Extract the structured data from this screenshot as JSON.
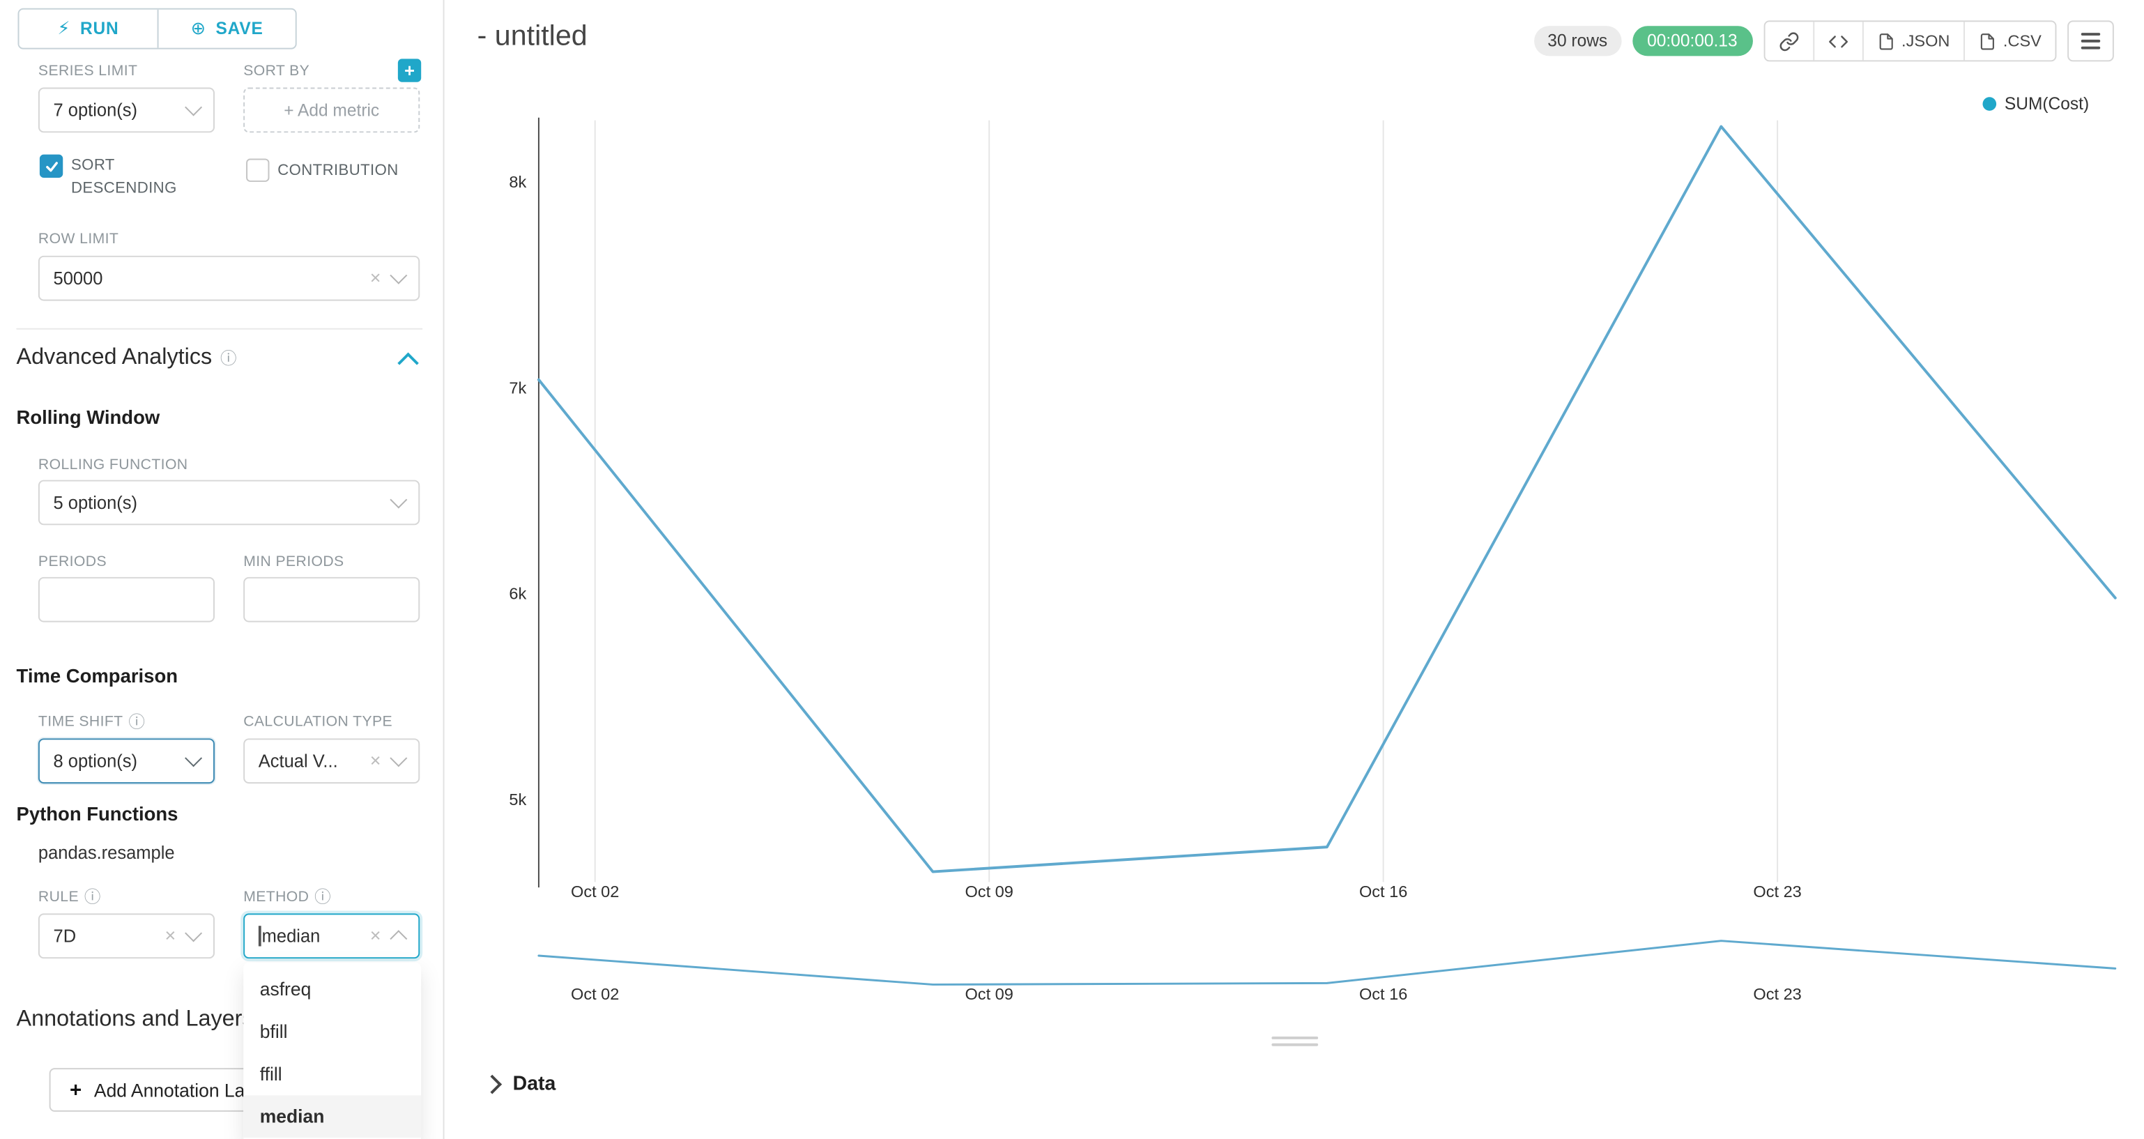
{
  "sidebar": {
    "run_label": "RUN",
    "save_label": "SAVE",
    "series_limit": {
      "label": "SERIES LIMIT",
      "value": "7 option(s)"
    },
    "sort_by": {
      "label": "SORT BY",
      "placeholder": "+ Add metric"
    },
    "sort_descending": {
      "label": "SORT DESCENDING",
      "checked": true
    },
    "contribution": {
      "label": "CONTRIBUTION",
      "checked": false
    },
    "row_limit": {
      "label": "ROW LIMIT",
      "value": "50000"
    },
    "advanced_analytics": {
      "title": "Advanced Analytics"
    },
    "rolling_window": {
      "title": "Rolling Window",
      "rolling_function": {
        "label": "ROLLING FUNCTION",
        "value": "5 option(s)"
      },
      "periods": {
        "label": "PERIODS",
        "value": ""
      },
      "min_periods": {
        "label": "MIN PERIODS",
        "value": ""
      }
    },
    "time_comparison": {
      "title": "Time Comparison",
      "time_shift": {
        "label": "TIME SHIFT",
        "value": "8 option(s)"
      },
      "calculation_type": {
        "label": "CALCULATION TYPE",
        "value": "Actual V..."
      }
    },
    "python_functions": {
      "title": "Python Functions",
      "subtitle": "pandas.resample",
      "rule": {
        "label": "RULE",
        "value": "7D"
      },
      "method": {
        "label": "METHOD",
        "value": "median"
      },
      "method_options": [
        "asfreq",
        "bfill",
        "ffill",
        "median"
      ],
      "method_selected": "median"
    },
    "annotations": {
      "title": "Annotations and Layers",
      "add_button": "Add Annotation Layer"
    }
  },
  "header": {
    "title": "- untitled",
    "rows_badge": "30 rows",
    "timer": "00:00:00.13",
    "json_label": ".JSON",
    "csv_label": ".CSV"
  },
  "data_panel": {
    "title": "Data"
  },
  "colors": {
    "accent": "#20A7C9",
    "success": "#5AC189"
  },
  "chart_data": {
    "type": "line",
    "title": "",
    "xlabel": "",
    "ylabel": "",
    "series": [
      {
        "name": "SUM(Cost)",
        "points": [
          {
            "x_day": 0,
            "label": "Oct 01",
            "value": 7040
          },
          {
            "x_day": 7,
            "label": "Oct 08",
            "value": 4650
          },
          {
            "x_day": 14,
            "label": "Oct 15",
            "value": 4770
          },
          {
            "x_day": 21,
            "label": "Oct 22",
            "value": 8270
          },
          {
            "x_day": 28,
            "label": "Oct 29",
            "value": 5980
          }
        ]
      }
    ],
    "x_ticks": [
      {
        "label": "Oct 02",
        "x_day": 1
      },
      {
        "label": "Oct 09",
        "x_day": 8
      },
      {
        "label": "Oct 16",
        "x_day": 15
      },
      {
        "label": "Oct 23",
        "x_day": 22
      }
    ],
    "y_ticks": [
      {
        "label": "5k",
        "value": 5000
      },
      {
        "label": "6k",
        "value": 6000
      },
      {
        "label": "7k",
        "value": 7000
      },
      {
        "label": "8k",
        "value": 8000
      }
    ],
    "ylim": [
      4600,
      8300
    ],
    "x_day_range": [
      0,
      28
    ],
    "grid": "vertical-only",
    "legend_position": "top-right",
    "line_color": "#5FA9CE",
    "legend": {
      "label": "SUM(Cost)",
      "color": "#20A7C9"
    }
  }
}
